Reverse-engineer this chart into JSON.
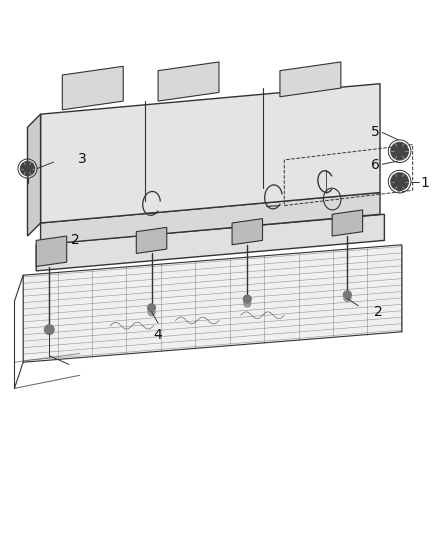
{
  "bg_color": "#ffffff",
  "line_color": "#333333",
  "fig_width": 4.38,
  "fig_height": 5.33,
  "label_fontsize": 10
}
